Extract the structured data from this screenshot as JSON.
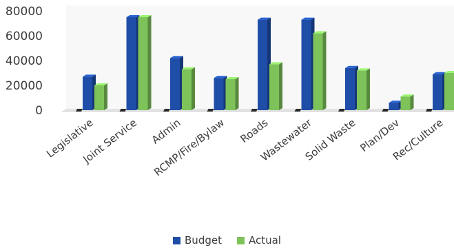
{
  "chart_data": {
    "type": "bar",
    "categories": [
      "Legislative",
      "Joint Service",
      "Admin",
      "RCMP/Fire/Bylaw",
      "Roads",
      "Wastewater",
      "Solid Waste",
      "Plan/Dev",
      "Rec/Culture"
    ],
    "series": [
      {
        "name": "Budget",
        "values": [
          27000,
          75000,
          42000,
          26000,
          73000,
          73000,
          34000,
          6000,
          29000
        ],
        "color": "#1f4ea8"
      },
      {
        "name": "Actual",
        "values": [
          20000,
          75000,
          33000,
          25000,
          37000,
          62000,
          32000,
          11000,
          30000
        ],
        "color": "#7dc35a"
      }
    ],
    "yticks": [
      "0",
      "20000",
      "40000",
      "60000",
      "80000"
    ],
    "ylim": [
      0,
      80000
    ],
    "grid": false,
    "legend_position": "bottom",
    "title": "",
    "xlabel": "",
    "ylabel": ""
  }
}
